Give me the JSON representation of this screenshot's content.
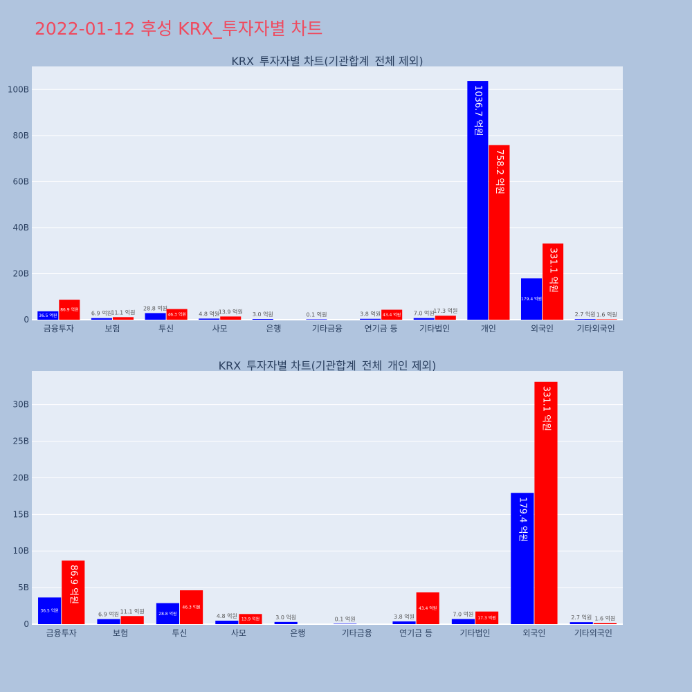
{
  "page_title": "2022-01-12 후성 KRX_투자자별 차트",
  "colors": {
    "background": "#b0c4de",
    "plot_bg": "#e5ecf6",
    "title": "#ef4a5e",
    "series_a": "#0000ff",
    "series_b": "#ff0000",
    "text": "#2a3f5f"
  },
  "chart_data": [
    {
      "type": "bar",
      "title": "KRX_투자자별 차트(기관합계_전체 제외)",
      "categories": [
        "금융투자",
        "보험",
        "투신",
        "사모",
        "은행",
        "기타금융",
        "연기금 등",
        "기타법인",
        "개인",
        "외국인",
        "기타외국인"
      ],
      "series": [
        {
          "color": "#0000ff",
          "values": [
            3.65,
            0.69,
            2.88,
            0.48,
            0.3,
            0.01,
            0.38,
            0.7,
            103.67,
            17.94,
            0.27
          ],
          "labels": [
            "36.5 억원",
            "6.9 억원",
            "28.8 억원",
            "4.8 억원",
            "3.0 억원",
            "0.1 억원",
            "3.8 억원",
            "7.0 억원",
            "1036.7 억원",
            "179.4 억원",
            "2.7 억원"
          ]
        },
        {
          "color": "#ff0000",
          "values": [
            8.69,
            1.11,
            4.63,
            1.39,
            null,
            null,
            4.34,
            1.73,
            75.82,
            33.11,
            0.16
          ],
          "labels": [
            "86.9 억원",
            "11.1 억원",
            "46.3 억원",
            "13.9 억원",
            "",
            "",
            "43.4 억원",
            "17.3 억원",
            "758.2 억원",
            "331.1 억원",
            "1.6 억원"
          ]
        }
      ],
      "y_ticks": [
        0,
        20,
        40,
        60,
        80,
        100
      ],
      "y_tick_labels": [
        "0",
        "20B",
        "40B",
        "60B",
        "80B",
        "100B"
      ],
      "ylim": [
        0,
        110
      ],
      "grid": true
    },
    {
      "type": "bar",
      "title": "KRX_투자자별 차트(기관합계_전체_개인 제외)",
      "categories": [
        "금융투자",
        "보험",
        "투신",
        "사모",
        "은행",
        "기타금융",
        "연기금 등",
        "기타법인",
        "외국인",
        "기타외국인"
      ],
      "series": [
        {
          "color": "#0000ff",
          "values": [
            3.65,
            0.69,
            2.88,
            0.48,
            0.3,
            0.01,
            0.38,
            0.7,
            17.94,
            0.27
          ],
          "labels": [
            "36.5 억원",
            "6.9 억원",
            "28.8 억원",
            "4.8 억원",
            "3.0 억원",
            "0.1 억원",
            "3.8 억원",
            "7.0 억원",
            "179.4 억원",
            "2.7 억원"
          ]
        },
        {
          "color": "#ff0000",
          "values": [
            8.69,
            1.11,
            4.63,
            1.39,
            null,
            null,
            4.34,
            1.73,
            33.11,
            0.16
          ],
          "labels": [
            "86.9 억원",
            "11.1 억원",
            "46.3 억원",
            "13.9 억원",
            "",
            "",
            "43.4 억원",
            "17.3 억원",
            "331.1 억원",
            "1.6 억원"
          ]
        }
      ],
      "y_ticks": [
        0,
        5,
        10,
        15,
        20,
        25,
        30
      ],
      "y_tick_labels": [
        "0",
        "5B",
        "10B",
        "15B",
        "20B",
        "25B",
        "30B"
      ],
      "ylim": [
        0,
        34.6
      ],
      "grid": true
    }
  ]
}
